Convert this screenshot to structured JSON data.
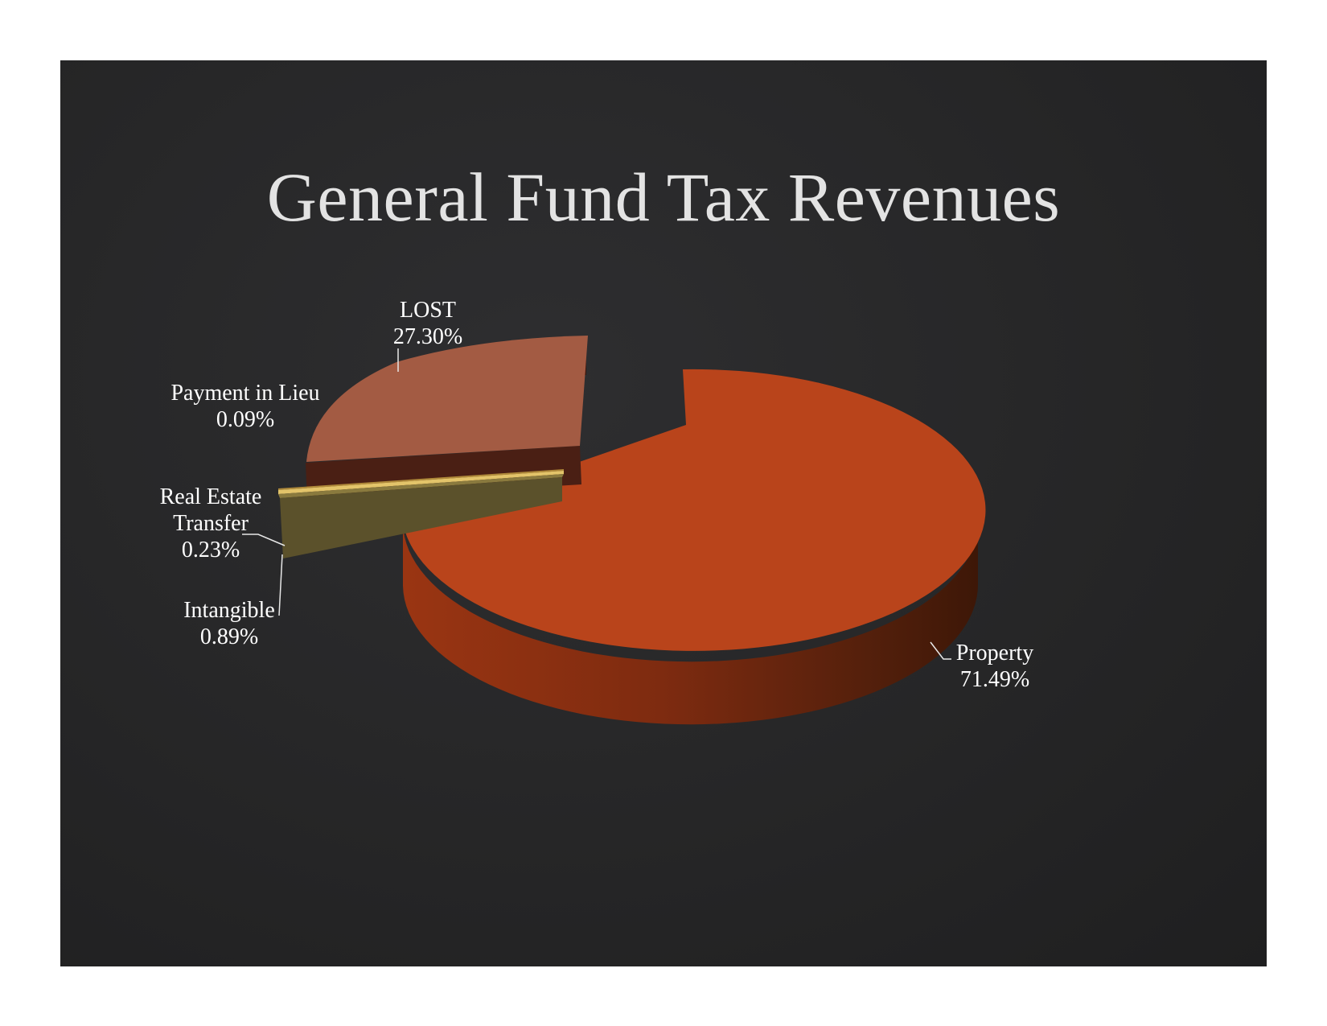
{
  "slide": {
    "title": "General Fund Tax Revenues"
  },
  "chart_data": {
    "type": "pie",
    "title": "General Fund Tax Revenues",
    "three_d": true,
    "exploded": true,
    "slices": [
      {
        "name": "Property",
        "value": 71.49,
        "label": "71.49%",
        "color": "#b9441b"
      },
      {
        "name": "Intangible",
        "value": 0.89,
        "label": "0.89%",
        "color": "#5b512b"
      },
      {
        "name": "Real Estate Transfer",
        "value": 0.23,
        "label": "0.23%",
        "color": "#d9b95a"
      },
      {
        "name": "Payment in Lieu",
        "value": 0.09,
        "label": "0.09%",
        "color": "#9a6a2a"
      },
      {
        "name": "LOST",
        "value": 27.3,
        "label": "27.30%",
        "color": "#a35b43"
      }
    ],
    "labels": {
      "property": [
        "Property",
        "71.49%"
      ],
      "intangible": [
        "Intangible",
        "0.89%"
      ],
      "real_estate": [
        "Real Estate",
        "Transfer",
        "0.23%"
      ],
      "payment_in_lieu": [
        "Payment in Lieu",
        "0.09%"
      ],
      "lost": [
        "LOST",
        "27.30%"
      ]
    },
    "legend": "none"
  }
}
